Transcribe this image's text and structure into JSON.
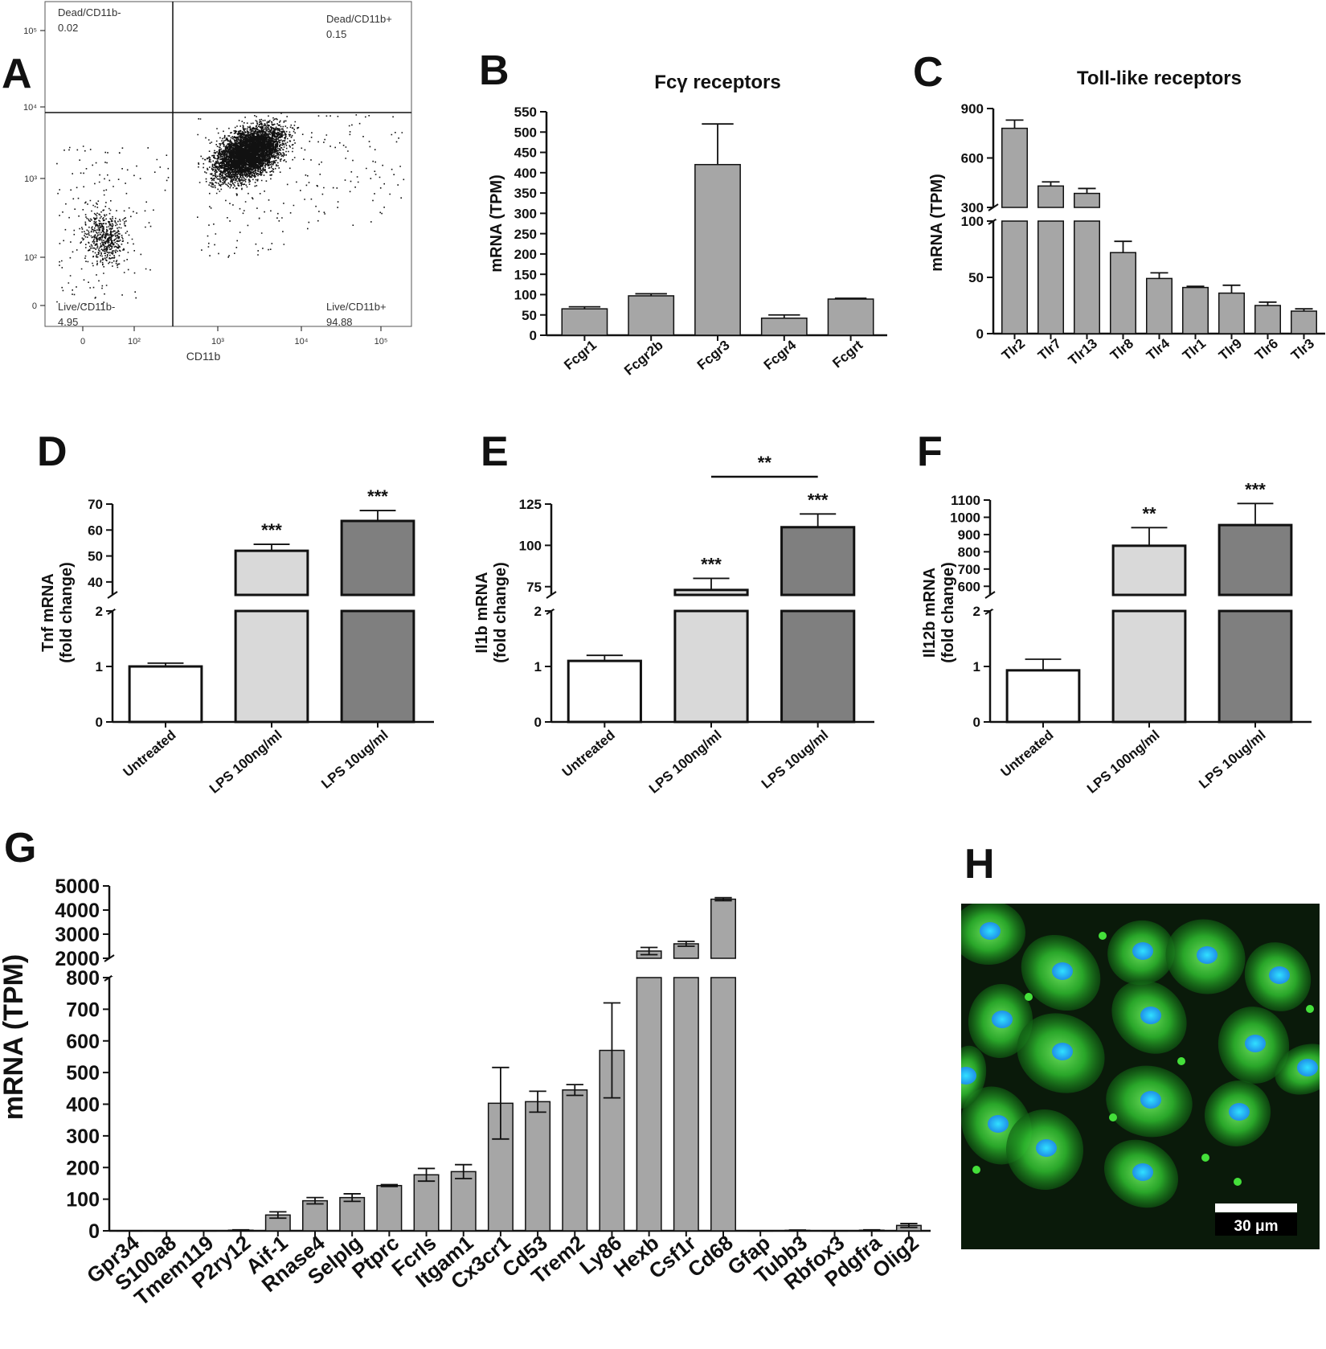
{
  "panel_letters": {
    "a": "A",
    "b": "B",
    "c": "C",
    "d": "D",
    "e": "E",
    "f": "F",
    "g": "G",
    "h": "H"
  },
  "colors": {
    "bar_gray": "#a6a6a6",
    "light_gray": "#d9d9d9",
    "dark_gray": "#7f7f7f",
    "white": "#ffffff",
    "micro_bg": "#0a1a0a",
    "cell_green": "#2fbf2f",
    "nucleus_blue": "#1f8fe8"
  },
  "chart_data": [
    {
      "id": "A",
      "type": "scatter",
      "xlabel": "CD11b",
      "x_ticks": [
        "0",
        "10²",
        "10³",
        "10⁴",
        "10⁵"
      ],
      "y_ticks": [
        "0",
        "10²",
        "10³",
        "10⁴",
        "10⁵"
      ],
      "x_scale": "log",
      "y_scale": "log",
      "quadrants": [
        {
          "name": "Dead/CD11b-",
          "value": "0.02"
        },
        {
          "name": "Dead/CD11b+",
          "value": "0.15"
        },
        {
          "name": "Live/CD11b-",
          "value": "4.95"
        },
        {
          "name": "Live/CD11b+",
          "value": "94.88"
        }
      ]
    },
    {
      "id": "B",
      "type": "bar",
      "title": "Fcγ receptors",
      "ylabel": "mRNA (TPM)",
      "categories": [
        "Fcgr1",
        "Fcgr2b",
        "Fcgr3",
        "Fcgr4",
        "Fcgrt"
      ],
      "values": [
        65,
        97,
        420,
        42,
        89
      ],
      "errors": [
        5,
        5,
        100,
        8,
        2
      ],
      "ylim": [
        0,
        550
      ],
      "yticks": [
        0,
        50,
        100,
        150,
        200,
        250,
        300,
        350,
        400,
        450,
        500,
        550
      ]
    },
    {
      "id": "C",
      "type": "bar",
      "title": "Toll-like receptors",
      "ylabel": "mRNA (TPM)",
      "categories": [
        "Tlr2",
        "Tlr7",
        "Tlr13",
        "Tlr8",
        "Tlr4",
        "Tlr1",
        "Tlr9",
        "Tlr6",
        "Tlr3"
      ],
      "values": [
        780,
        430,
        385,
        72,
        49,
        41,
        36,
        25,
        20
      ],
      "errors": [
        50,
        25,
        30,
        10,
        5,
        1,
        7,
        3,
        2
      ],
      "axis_break": {
        "lower": [
          0,
          100
        ],
        "upper": [
          300,
          900
        ]
      },
      "yticks_lower": [
        0,
        50,
        100
      ],
      "yticks_upper": [
        300,
        600,
        900
      ]
    },
    {
      "id": "D",
      "type": "bar",
      "ylabel": "Tnf mRNA",
      "ylabel2": "(fold change)",
      "categories": [
        "Untreated",
        "LPS 100ng/ml",
        "LPS 10ug/ml"
      ],
      "values": [
        1,
        52,
        63.5
      ],
      "errors": [
        0.06,
        2.5,
        4
      ],
      "significance": [
        "",
        "***",
        "***"
      ],
      "axis_break": {
        "lower": [
          0,
          2
        ],
        "upper": [
          35,
          70
        ]
      },
      "yticks_lower": [
        0,
        1,
        2
      ],
      "yticks_upper": [
        40,
        50,
        60,
        70
      ]
    },
    {
      "id": "E",
      "type": "bar",
      "ylabel": "Il1b mRNA",
      "ylabel2": "(fold change)",
      "categories": [
        "Untreated",
        "LPS 100ng/ml",
        "LPS 10ug/ml"
      ],
      "values": [
        1.1,
        73,
        111
      ],
      "errors": [
        0.1,
        7,
        8
      ],
      "significance": [
        "",
        "***",
        "***"
      ],
      "bracket": {
        "from": "LPS 100ng/ml",
        "to": "LPS 10ug/ml",
        "label": "**"
      },
      "axis_break": {
        "lower": [
          0,
          2
        ],
        "upper": [
          70,
          125
        ]
      },
      "yticks_lower": [
        0,
        1,
        2
      ],
      "yticks_upper": [
        75,
        100,
        125
      ]
    },
    {
      "id": "F",
      "type": "bar",
      "ylabel": "Il12b mRNA",
      "ylabel2": "(fold change)",
      "categories": [
        "Untreated",
        "LPS 100ng/ml",
        "LPS 10ug/ml"
      ],
      "values": [
        0.93,
        835,
        955
      ],
      "errors": [
        0.2,
        105,
        125
      ],
      "significance": [
        "",
        "**",
        "***"
      ],
      "axis_break": {
        "lower": [
          0,
          2
        ],
        "upper": [
          550,
          1100
        ]
      },
      "yticks_lower": [
        0,
        1,
        2
      ],
      "yticks_upper": [
        600,
        700,
        800,
        900,
        1000,
        1100
      ]
    },
    {
      "id": "G",
      "type": "bar",
      "ylabel": "mRNA (TPM)",
      "categories": [
        "Gpr34",
        "S100a8",
        "Tmem119",
        "P2ry12",
        "Aif-1",
        "Rnase4",
        "Selplg",
        "Ptprc",
        "Fcrls",
        "Itgam1",
        "Cx3cr1",
        "Cd53",
        "Trem2",
        "Ly86",
        "Hexb",
        "Csf1r",
        "Cd68",
        "Gfap",
        "Tubb3",
        "Rbfox3",
        "Pdgfra",
        "Olig2"
      ],
      "values": [
        0.5,
        0.5,
        0.5,
        2,
        50,
        95,
        105,
        143,
        177,
        187,
        403,
        408,
        445,
        570,
        2300,
        2600,
        4450,
        0.5,
        1.5,
        0.5,
        2,
        17
      ],
      "errors": [
        0,
        0,
        0,
        1,
        10,
        10,
        12,
        3,
        20,
        22,
        113,
        33,
        17,
        150,
        150,
        100,
        60,
        0,
        1,
        0,
        1,
        6
      ],
      "axis_break": {
        "lower": [
          0,
          800
        ],
        "upper": [
          2000,
          5000
        ]
      },
      "yticks_lower": [
        0,
        100,
        200,
        300,
        400,
        500,
        600,
        700,
        800
      ],
      "yticks_upper": [
        2000,
        3000,
        4000,
        5000
      ]
    }
  ],
  "microscopy": {
    "scale_bar_label": "30 μm"
  }
}
